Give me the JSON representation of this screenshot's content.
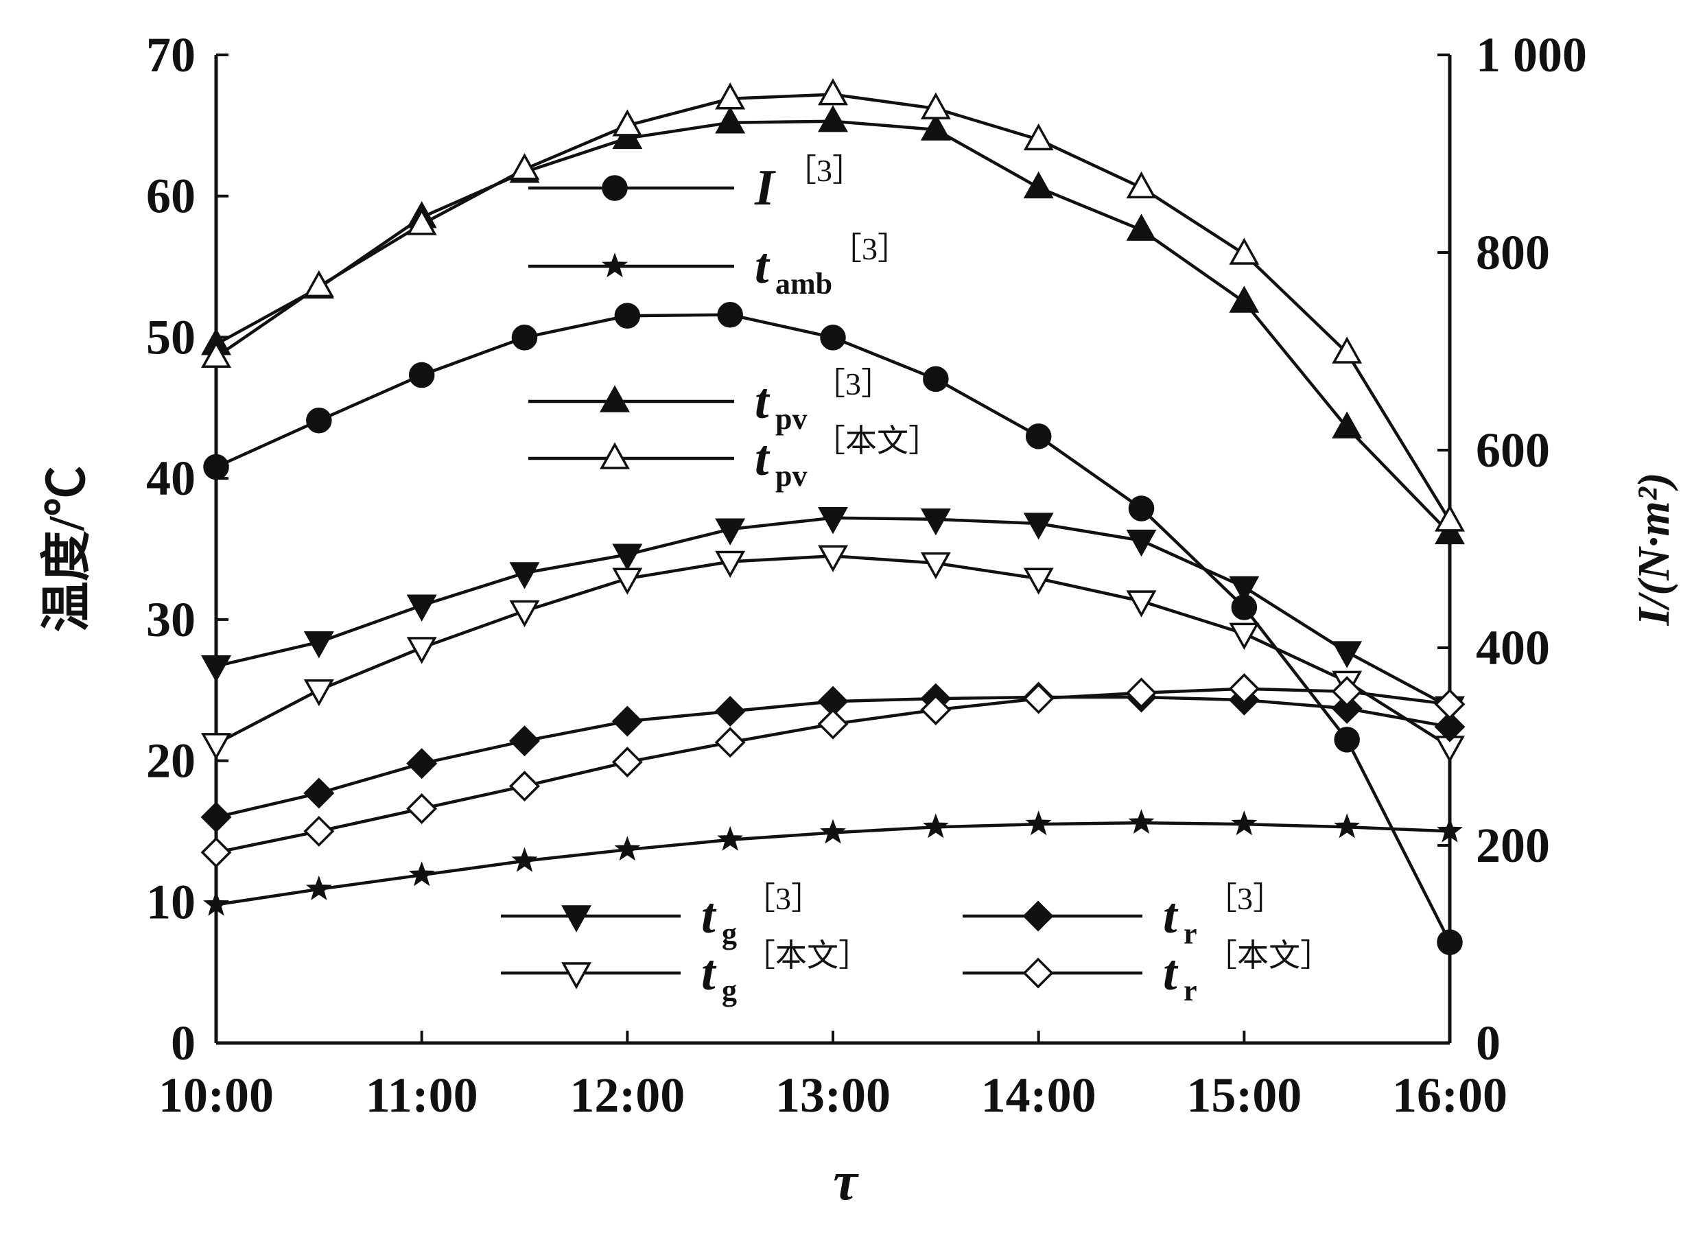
{
  "chart_data": {
    "type": "line",
    "x": [
      "10:00",
      "10:30",
      "11:00",
      "11:30",
      "12:00",
      "12:30",
      "13:00",
      "13:30",
      "14:00",
      "14:30",
      "15:00",
      "15:30",
      "16:00"
    ],
    "xticks": [
      "10:00",
      "11:00",
      "12:00",
      "13:00",
      "14:00",
      "15:00",
      "16:00"
    ],
    "xlabel": "τ",
    "ylabel_left": "温度/℃",
    "ylabel_right": "I/(N·m²)",
    "ylim_left": [
      0,
      70
    ],
    "ylim_right": [
      0,
      1000
    ],
    "yticks_left": [
      "0",
      "10",
      "20",
      "30",
      "40",
      "50",
      "60",
      "70"
    ],
    "yticks_right": [
      "0",
      "200",
      "400",
      "600",
      "800",
      "1 000"
    ],
    "grid": false,
    "series": [
      {
        "id": "I",
        "symbol": "I",
        "sub": "",
        "ref": "［3］",
        "marker": "circle",
        "filled": true,
        "axis": "right",
        "values": [
          583,
          630,
          676,
          714,
          736,
          737,
          714,
          672,
          614,
          541,
          441,
          307,
          102
        ]
      },
      {
        "id": "tamb",
        "symbol": "t",
        "sub": "amb",
        "ref": "［3］",
        "marker": "star",
        "filled": true,
        "axis": "left",
        "values": [
          9.8,
          10.9,
          11.9,
          12.9,
          13.7,
          14.4,
          14.9,
          15.3,
          15.5,
          15.6,
          15.5,
          15.3,
          15.0
        ]
      },
      {
        "id": "tpv3",
        "symbol": "t",
        "sub": "pv",
        "ref": "［3］",
        "marker": "triangle-up",
        "filled": true,
        "axis": "left",
        "values": [
          49.5,
          53.5,
          58.5,
          61.7,
          64.1,
          65.2,
          65.3,
          64.7,
          60.6,
          57.6,
          52.5,
          43.6,
          36.1
        ]
      },
      {
        "id": "tpv",
        "symbol": "t",
        "sub": "pv",
        "ref": "［本文］",
        "marker": "triangle-up",
        "filled": false,
        "axis": "left",
        "values": [
          48.6,
          53.6,
          58.0,
          61.9,
          65.0,
          66.9,
          67.2,
          66.2,
          64.0,
          60.6,
          55.9,
          48.9,
          37.0
        ]
      },
      {
        "id": "tg3",
        "symbol": "t",
        "sub": "g",
        "ref": "［3］",
        "marker": "triangle-down",
        "filled": true,
        "axis": "left",
        "values": [
          26.7,
          28.4,
          31.0,
          33.3,
          34.6,
          36.4,
          37.2,
          37.1,
          36.8,
          35.6,
          32.3,
          27.7,
          23.8
        ]
      },
      {
        "id": "tg",
        "symbol": "t",
        "sub": "g",
        "ref": "［本文］",
        "marker": "triangle-down",
        "filled": false,
        "axis": "left",
        "values": [
          21.2,
          25.0,
          28.0,
          30.6,
          32.9,
          34.1,
          34.5,
          34.0,
          32.9,
          31.3,
          29.0,
          25.6,
          21.0
        ]
      },
      {
        "id": "tr3",
        "symbol": "t",
        "sub": "r",
        "ref": "［3］",
        "marker": "diamond",
        "filled": true,
        "axis": "left",
        "values": [
          16.0,
          17.7,
          19.8,
          21.4,
          22.8,
          23.5,
          24.2,
          24.4,
          24.5,
          24.5,
          24.3,
          23.7,
          22.4
        ]
      },
      {
        "id": "tr",
        "symbol": "t",
        "sub": "r",
        "ref": "［本文］",
        "marker": "diamond",
        "filled": false,
        "axis": "left",
        "values": [
          13.5,
          15.0,
          16.6,
          18.2,
          19.9,
          21.3,
          22.6,
          23.6,
          24.4,
          24.8,
          25.1,
          24.9,
          24.0
        ]
      }
    ]
  }
}
